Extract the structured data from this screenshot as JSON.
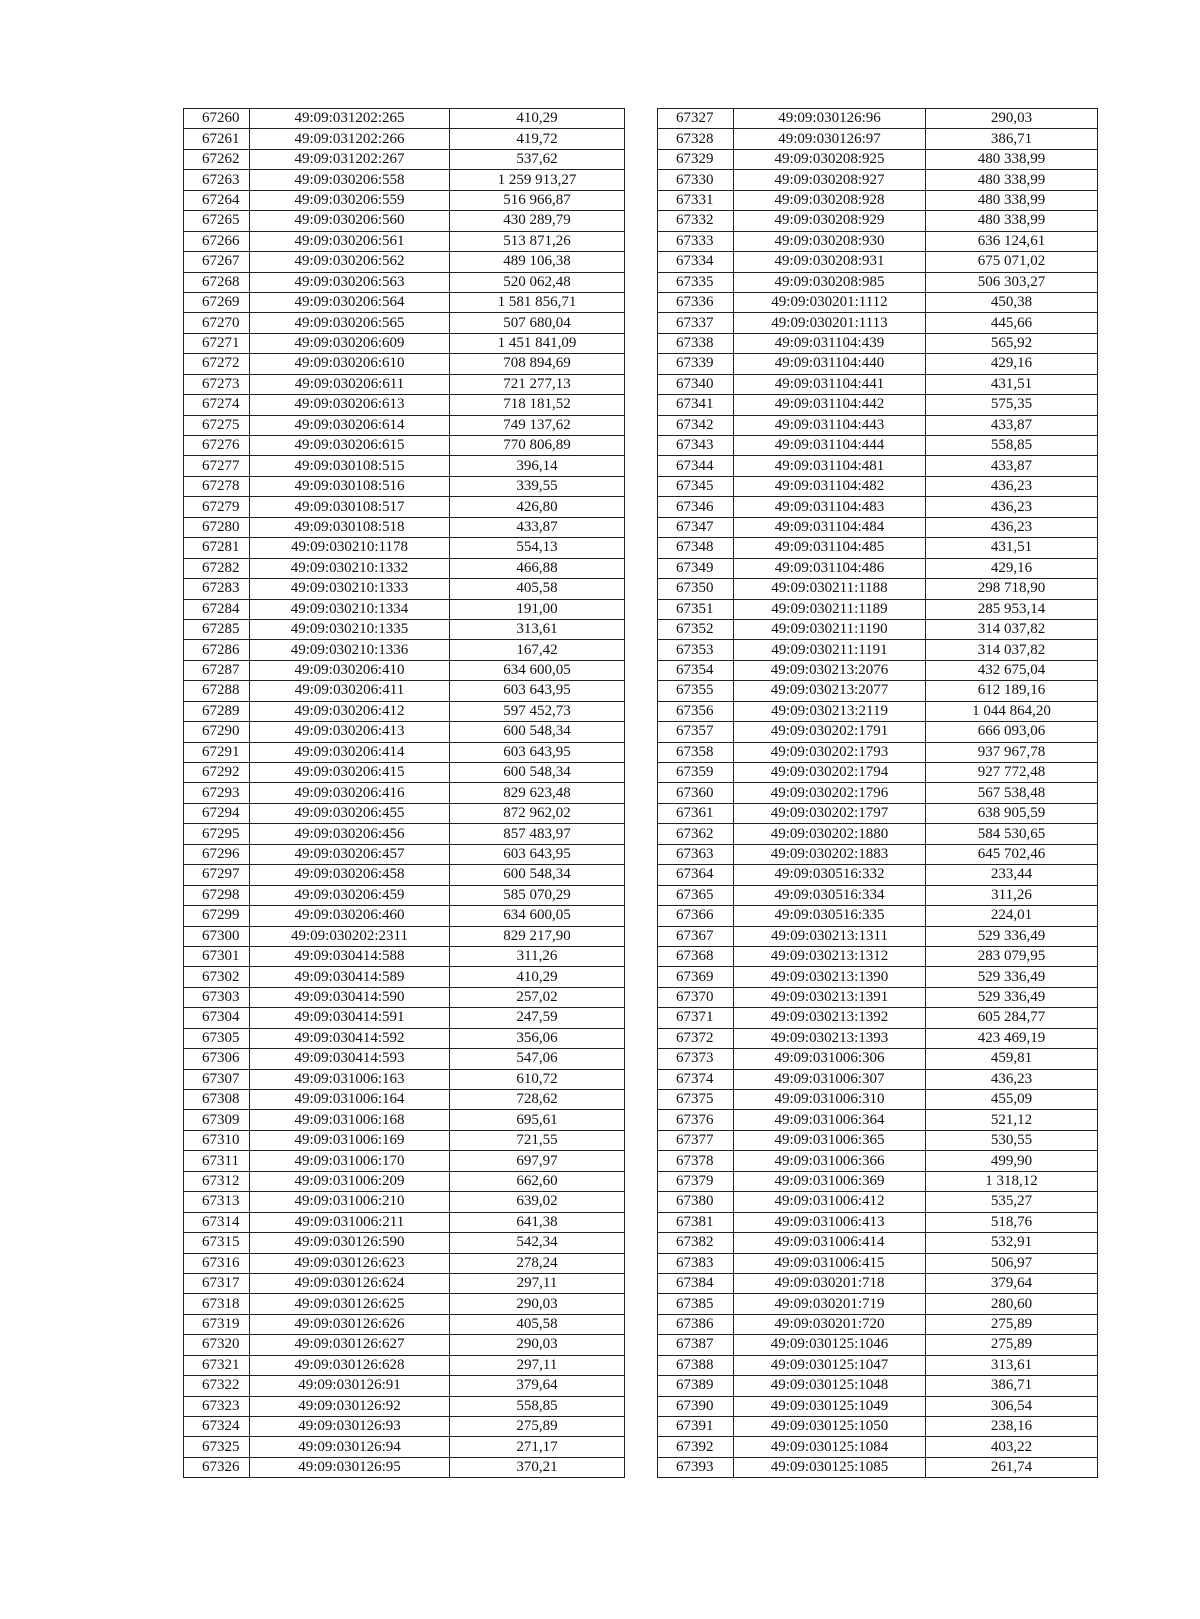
{
  "left_table": [
    [
      "67260",
      "49:09:031202:265",
      "410,29"
    ],
    [
      "67261",
      "49:09:031202:266",
      "419,72"
    ],
    [
      "67262",
      "49:09:031202:267",
      "537,62"
    ],
    [
      "67263",
      "49:09:030206:558",
      "1 259 913,27"
    ],
    [
      "67264",
      "49:09:030206:559",
      "516 966,87"
    ],
    [
      "67265",
      "49:09:030206:560",
      "430 289,79"
    ],
    [
      "67266",
      "49:09:030206:561",
      "513 871,26"
    ],
    [
      "67267",
      "49:09:030206:562",
      "489 106,38"
    ],
    [
      "67268",
      "49:09:030206:563",
      "520 062,48"
    ],
    [
      "67269",
      "49:09:030206:564",
      "1 581 856,71"
    ],
    [
      "67270",
      "49:09:030206:565",
      "507 680,04"
    ],
    [
      "67271",
      "49:09:030206:609",
      "1 451 841,09"
    ],
    [
      "67272",
      "49:09:030206:610",
      "708 894,69"
    ],
    [
      "67273",
      "49:09:030206:611",
      "721 277,13"
    ],
    [
      "67274",
      "49:09:030206:613",
      "718 181,52"
    ],
    [
      "67275",
      "49:09:030206:614",
      "749 137,62"
    ],
    [
      "67276",
      "49:09:030206:615",
      "770 806,89"
    ],
    [
      "67277",
      "49:09:030108:515",
      "396,14"
    ],
    [
      "67278",
      "49:09:030108:516",
      "339,55"
    ],
    [
      "67279",
      "49:09:030108:517",
      "426,80"
    ],
    [
      "67280",
      "49:09:030108:518",
      "433,87"
    ],
    [
      "67281",
      "49:09:030210:1178",
      "554,13"
    ],
    [
      "67282",
      "49:09:030210:1332",
      "466,88"
    ],
    [
      "67283",
      "49:09:030210:1333",
      "405,58"
    ],
    [
      "67284",
      "49:09:030210:1334",
      "191,00"
    ],
    [
      "67285",
      "49:09:030210:1335",
      "313,61"
    ],
    [
      "67286",
      "49:09:030210:1336",
      "167,42"
    ],
    [
      "67287",
      "49:09:030206:410",
      "634 600,05"
    ],
    [
      "67288",
      "49:09:030206:411",
      "603 643,95"
    ],
    [
      "67289",
      "49:09:030206:412",
      "597 452,73"
    ],
    [
      "67290",
      "49:09:030206:413",
      "600 548,34"
    ],
    [
      "67291",
      "49:09:030206:414",
      "603 643,95"
    ],
    [
      "67292",
      "49:09:030206:415",
      "600 548,34"
    ],
    [
      "67293",
      "49:09:030206:416",
      "829 623,48"
    ],
    [
      "67294",
      "49:09:030206:455",
      "872 962,02"
    ],
    [
      "67295",
      "49:09:030206:456",
      "857 483,97"
    ],
    [
      "67296",
      "49:09:030206:457",
      "603 643,95"
    ],
    [
      "67297",
      "49:09:030206:458",
      "600 548,34"
    ],
    [
      "67298",
      "49:09:030206:459",
      "585 070,29"
    ],
    [
      "67299",
      "49:09:030206:460",
      "634 600,05"
    ],
    [
      "67300",
      "49:09:030202:2311",
      "829 217,90"
    ],
    [
      "67301",
      "49:09:030414:588",
      "311,26"
    ],
    [
      "67302",
      "49:09:030414:589",
      "410,29"
    ],
    [
      "67303",
      "49:09:030414:590",
      "257,02"
    ],
    [
      "67304",
      "49:09:030414:591",
      "247,59"
    ],
    [
      "67305",
      "49:09:030414:592",
      "356,06"
    ],
    [
      "67306",
      "49:09:030414:593",
      "547,06"
    ],
    [
      "67307",
      "49:09:031006:163",
      "610,72"
    ],
    [
      "67308",
      "49:09:031006:164",
      "728,62"
    ],
    [
      "67309",
      "49:09:031006:168",
      "695,61"
    ],
    [
      "67310",
      "49:09:031006:169",
      "721,55"
    ],
    [
      "67311",
      "49:09:031006:170",
      "697,97"
    ],
    [
      "67312",
      "49:09:031006:209",
      "662,60"
    ],
    [
      "67313",
      "49:09:031006:210",
      "639,02"
    ],
    [
      "67314",
      "49:09:031006:211",
      "641,38"
    ],
    [
      "67315",
      "49:09:030126:590",
      "542,34"
    ],
    [
      "67316",
      "49:09:030126:623",
      "278,24"
    ],
    [
      "67317",
      "49:09:030126:624",
      "297,11"
    ],
    [
      "67318",
      "49:09:030126:625",
      "290,03"
    ],
    [
      "67319",
      "49:09:030126:626",
      "405,58"
    ],
    [
      "67320",
      "49:09:030126:627",
      "290,03"
    ],
    [
      "67321",
      "49:09:030126:628",
      "297,11"
    ],
    [
      "67322",
      "49:09:030126:91",
      "379,64"
    ],
    [
      "67323",
      "49:09:030126:92",
      "558,85"
    ],
    [
      "67324",
      "49:09:030126:93",
      "275,89"
    ],
    [
      "67325",
      "49:09:030126:94",
      "271,17"
    ],
    [
      "67326",
      "49:09:030126:95",
      "370,21"
    ]
  ],
  "right_table": [
    [
      "67327",
      "49:09:030126:96",
      "290,03"
    ],
    [
      "67328",
      "49:09:030126:97",
      "386,71"
    ],
    [
      "67329",
      "49:09:030208:925",
      "480 338,99"
    ],
    [
      "67330",
      "49:09:030208:927",
      "480 338,99"
    ],
    [
      "67331",
      "49:09:030208:928",
      "480 338,99"
    ],
    [
      "67332",
      "49:09:030208:929",
      "480 338,99"
    ],
    [
      "67333",
      "49:09:030208:930",
      "636 124,61"
    ],
    [
      "67334",
      "49:09:030208:931",
      "675 071,02"
    ],
    [
      "67335",
      "49:09:030208:985",
      "506 303,27"
    ],
    [
      "67336",
      "49:09:030201:1112",
      "450,38"
    ],
    [
      "67337",
      "49:09:030201:1113",
      "445,66"
    ],
    [
      "67338",
      "49:09:031104:439",
      "565,92"
    ],
    [
      "67339",
      "49:09:031104:440",
      "429,16"
    ],
    [
      "67340",
      "49:09:031104:441",
      "431,51"
    ],
    [
      "67341",
      "49:09:031104:442",
      "575,35"
    ],
    [
      "67342",
      "49:09:031104:443",
      "433,87"
    ],
    [
      "67343",
      "49:09:031104:444",
      "558,85"
    ],
    [
      "67344",
      "49:09:031104:481",
      "433,87"
    ],
    [
      "67345",
      "49:09:031104:482",
      "436,23"
    ],
    [
      "67346",
      "49:09:031104:483",
      "436,23"
    ],
    [
      "67347",
      "49:09:031104:484",
      "436,23"
    ],
    [
      "67348",
      "49:09:031104:485",
      "431,51"
    ],
    [
      "67349",
      "49:09:031104:486",
      "429,16"
    ],
    [
      "67350",
      "49:09:030211:1188",
      "298 718,90"
    ],
    [
      "67351",
      "49:09:030211:1189",
      "285 953,14"
    ],
    [
      "67352",
      "49:09:030211:1190",
      "314 037,82"
    ],
    [
      "67353",
      "49:09:030211:1191",
      "314 037,82"
    ],
    [
      "67354",
      "49:09:030213:2076",
      "432 675,04"
    ],
    [
      "67355",
      "49:09:030213:2077",
      "612 189,16"
    ],
    [
      "67356",
      "49:09:030213:2119",
      "1 044 864,20"
    ],
    [
      "67357",
      "49:09:030202:1791",
      "666 093,06"
    ],
    [
      "67358",
      "49:09:030202:1793",
      "937 967,78"
    ],
    [
      "67359",
      "49:09:030202:1794",
      "927 772,48"
    ],
    [
      "67360",
      "49:09:030202:1796",
      "567 538,48"
    ],
    [
      "67361",
      "49:09:030202:1797",
      "638 905,59"
    ],
    [
      "67362",
      "49:09:030202:1880",
      "584 530,65"
    ],
    [
      "67363",
      "49:09:030202:1883",
      "645 702,46"
    ],
    [
      "67364",
      "49:09:030516:332",
      "233,44"
    ],
    [
      "67365",
      "49:09:030516:334",
      "311,26"
    ],
    [
      "67366",
      "49:09:030516:335",
      "224,01"
    ],
    [
      "67367",
      "49:09:030213:1311",
      "529 336,49"
    ],
    [
      "67368",
      "49:09:030213:1312",
      "283 079,95"
    ],
    [
      "67369",
      "49:09:030213:1390",
      "529 336,49"
    ],
    [
      "67370",
      "49:09:030213:1391",
      "529 336,49"
    ],
    [
      "67371",
      "49:09:030213:1392",
      "605 284,77"
    ],
    [
      "67372",
      "49:09:030213:1393",
      "423 469,19"
    ],
    [
      "67373",
      "49:09:031006:306",
      "459,81"
    ],
    [
      "67374",
      "49:09:031006:307",
      "436,23"
    ],
    [
      "67375",
      "49:09:031006:310",
      "455,09"
    ],
    [
      "67376",
      "49:09:031006:364",
      "521,12"
    ],
    [
      "67377",
      "49:09:031006:365",
      "530,55"
    ],
    [
      "67378",
      "49:09:031006:366",
      "499,90"
    ],
    [
      "67379",
      "49:09:031006:369",
      "1 318,12"
    ],
    [
      "67380",
      "49:09:031006:412",
      "535,27"
    ],
    [
      "67381",
      "49:09:031006:413",
      "518,76"
    ],
    [
      "67382",
      "49:09:031006:414",
      "532,91"
    ],
    [
      "67383",
      "49:09:031006:415",
      "506,97"
    ],
    [
      "67384",
      "49:09:030201:718",
      "379,64"
    ],
    [
      "67385",
      "49:09:030201:719",
      "280,60"
    ],
    [
      "67386",
      "49:09:030201:720",
      "275,89"
    ],
    [
      "67387",
      "49:09:030125:1046",
      "275,89"
    ],
    [
      "67388",
      "49:09:030125:1047",
      "313,61"
    ],
    [
      "67389",
      "49:09:030125:1048",
      "386,71"
    ],
    [
      "67390",
      "49:09:030125:1049",
      "306,54"
    ],
    [
      "67391",
      "49:09:030125:1050",
      "238,16"
    ],
    [
      "67392",
      "49:09:030125:1084",
      "403,22"
    ],
    [
      "67393",
      "49:09:030125:1085",
      "261,74"
    ]
  ]
}
